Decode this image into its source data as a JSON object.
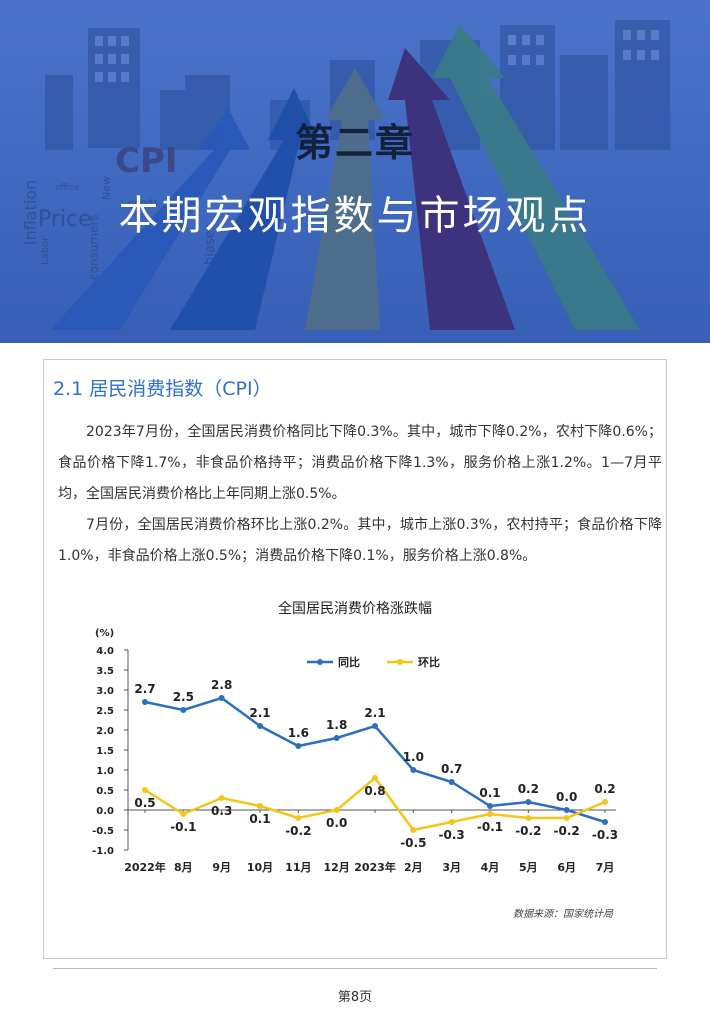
{
  "banner": {
    "chapter_number": "第二章",
    "chapter_title": "本期宏观指数与市场观点",
    "background_words": [
      "CPI",
      "Price",
      "inflation",
      "consumers",
      "biases",
      "Labor",
      "New",
      "office",
      "goods"
    ]
  },
  "section": {
    "title": "2.1 居民消费指数（CPI）",
    "paragraph1": "2023年7月份，全国居民消费价格同比下降0.3%。其中，城市下降0.2%，农村下降0.6%；食品价格下降1.7%，非食品价格持平；消费品价格下降1.3%，服务价格上涨1.2%。1—7月平均，全国居民消费价格比上年同期上涨0.5%。",
    "paragraph2": "7月份，全国居民消费价格环比上涨0.2%。其中，城市上涨0.3%，农村持平；食品价格下降1.0%，非食品价格上涨0.5%；消费品价格下降0.1%，服务价格上涨0.8%。"
  },
  "chart_data": {
    "type": "line",
    "title": "全国居民消费价格涨跌幅",
    "ylabel": "(%)",
    "xlabel": "",
    "ylim": [
      -1.0,
      4.0
    ],
    "yticks": [
      "4.0",
      "3.5",
      "3.0",
      "2.5",
      "2.0",
      "1.5",
      "1.0",
      "0.5",
      "0.0",
      "-0.5",
      "-1.0"
    ],
    "yticks_values": [
      4.0,
      3.5,
      3.0,
      2.5,
      2.0,
      1.5,
      1.0,
      0.5,
      0.0,
      -0.5,
      -1.0
    ],
    "categories": [
      "2022年",
      "8月",
      "9月",
      "10月",
      "11月",
      "12月",
      "2023年",
      "2月",
      "3月",
      "4月",
      "5月",
      "6月",
      "7月"
    ],
    "series": [
      {
        "name": "同比",
        "color": "#2c6fbf",
        "values": [
          2.7,
          2.5,
          2.8,
          2.1,
          1.6,
          1.8,
          2.1,
          1.0,
          0.7,
          0.1,
          0.2,
          0.0,
          -0.3
        ],
        "labels": [
          "2.7",
          "2.5",
          "2.8",
          "2.1",
          "1.6",
          "1.8",
          "2.1",
          "1.0",
          "0.7",
          "0.1",
          "0.2",
          "0.0",
          "-0.3"
        ]
      },
      {
        "name": "环比",
        "color": "#f5c518",
        "values": [
          0.5,
          -0.1,
          0.3,
          0.1,
          -0.2,
          0.0,
          0.8,
          -0.5,
          -0.3,
          -0.1,
          -0.2,
          -0.2,
          0.2
        ],
        "labels": [
          "0.5",
          "-0.1",
          "0.3",
          "0.1",
          "-0.2",
          "0.0",
          "0.8",
          "-0.5",
          "-0.3",
          "-0.1",
          "-0.2",
          "-0.2",
          "0.2"
        ]
      }
    ],
    "legend_position": "top-center",
    "grid": false,
    "source": "数据来源：国家统计局"
  },
  "footer": {
    "page": "第8页"
  }
}
